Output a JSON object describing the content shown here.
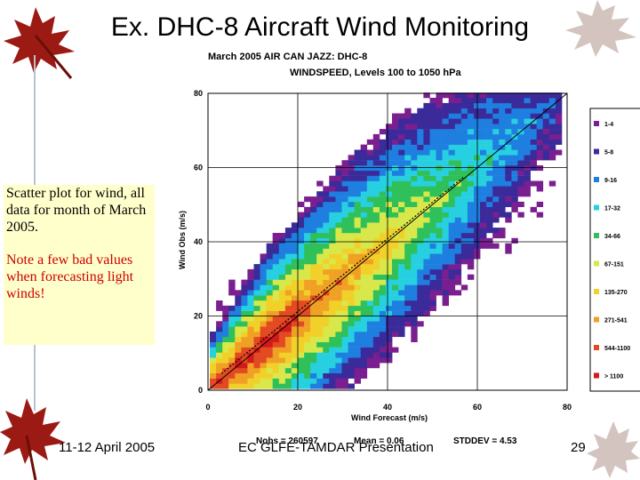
{
  "slide": {
    "title": "Ex. DHC-8 Aircraft Wind Monitoring",
    "note1": "Scatter plot for wind, all data for month of March 2005.",
    "note2": "Note a few bad values when forecasting light winds!",
    "footer_left": "11-12 April 2005",
    "footer_center": "EC GLFE-TAMDAR Presentation",
    "page_number": "29"
  },
  "chart_data": {
    "type": "heatmap",
    "title": "March 2005  AIR CAN JAZZ: DHC-8",
    "subtitle": "WINDSPEED, Levels 100 to 1050 hPa",
    "xlabel": "Wind Forecast (m/s)",
    "ylabel": "Wind Obs (m/s)",
    "xlim": [
      0,
      80
    ],
    "ylim": [
      0,
      80
    ],
    "xticks": [
      "0",
      "20",
      "40",
      "60",
      "80"
    ],
    "yticks": [
      "0",
      "20",
      "40",
      "60",
      "80"
    ],
    "grid": true,
    "legend_position": "right",
    "stats": {
      "nobs": "Nobs = 260597",
      "mean": "Mean = 0.06",
      "stddev": "STDDEV = 4.53"
    },
    "legend": [
      {
        "label": "1-4",
        "color": "#7a1f8f"
      },
      {
        "label": "5-8",
        "color": "#3a2a9a"
      },
      {
        "label": "9-16",
        "color": "#1e7fe0"
      },
      {
        "label": "17-32",
        "color": "#27d0e0"
      },
      {
        "label": "34-66",
        "color": "#2fc05a"
      },
      {
        "label": "67-151",
        "color": "#d8e84a"
      },
      {
        "label": "135-270",
        "color": "#f2d02a"
      },
      {
        "label": "271-541",
        "color": "#f0a025"
      },
      {
        "label": "544-1100",
        "color": "#e34a22"
      },
      {
        "label": "> 1100",
        "color": "#d11a1a"
      }
    ]
  }
}
